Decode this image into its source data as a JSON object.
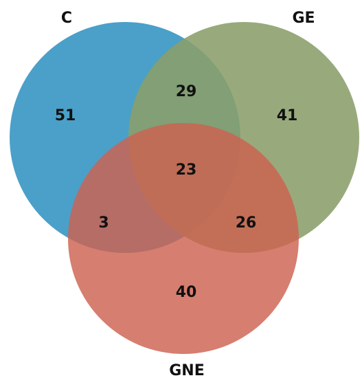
{
  "venn": {
    "sets": [
      {
        "id": "c",
        "label": "C",
        "color": "#4aa0c8"
      },
      {
        "id": "ge",
        "label": "GE",
        "color": "#8a9e6a"
      },
      {
        "id": "gne",
        "label": "GNE",
        "color": "#cd6251"
      }
    ],
    "regions": {
      "c_only": "51",
      "ge_only": "41",
      "gne_only": "40",
      "c_ge": "29",
      "c_gne": "3",
      "ge_gne": "26",
      "c_ge_gne": "23"
    }
  }
}
